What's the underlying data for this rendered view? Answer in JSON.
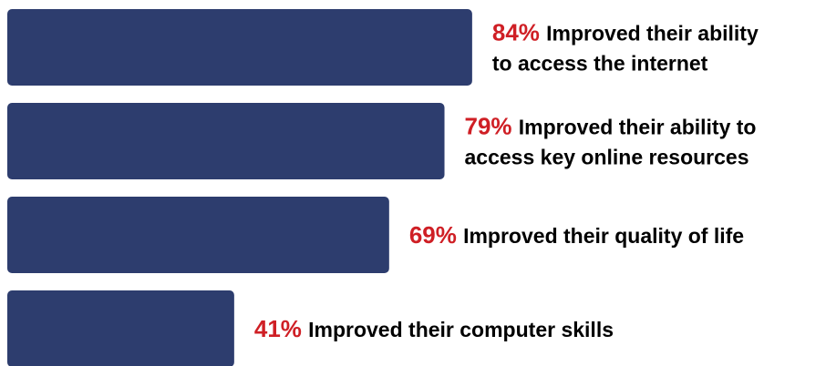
{
  "chart_data": {
    "type": "bar",
    "orientation": "horizontal",
    "bar_color": "#2d3d6e",
    "highlight_color": "#cf1f25",
    "text_color": "#000000",
    "xlim": [
      0,
      100
    ],
    "categories": [
      "Improved their ability to access the internet",
      "Improved their ability to access key online resources",
      "Improved their quality of life",
      "Improved their computer skills"
    ],
    "values": [
      84,
      79,
      69,
      41
    ],
    "labels": [
      {
        "pct": "84%",
        "lines": [
          "Improved their ability",
          "to access the internet"
        ]
      },
      {
        "pct": "79%",
        "lines": [
          "Improved their ability to",
          "access key online resources"
        ]
      },
      {
        "pct": "69%",
        "lines": [
          "Improved their quality of life"
        ]
      },
      {
        "pct": "41%",
        "lines": [
          "Improved their computer skills"
        ]
      }
    ]
  }
}
